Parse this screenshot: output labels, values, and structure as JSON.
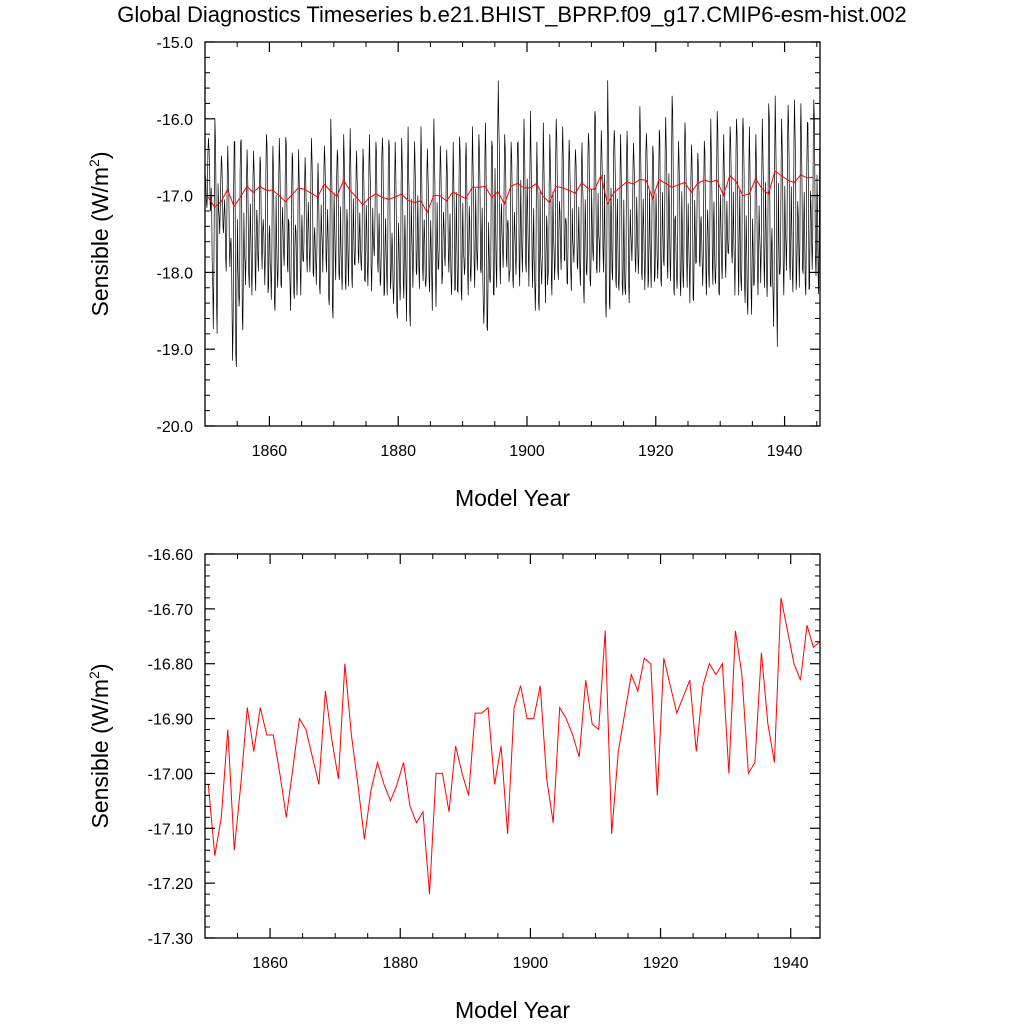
{
  "title": "Global Diagnostics Timeseries b.e21.BHIST_BPRP.f09_g17.CMIP6-esm-hist.002",
  "colors": {
    "monthly": "#000000",
    "annual": "#ff0000",
    "axis": "#000000"
  },
  "chart_data": [
    {
      "type": "line",
      "xlabel": "Model Year",
      "ylabel": "Sensible (W/m²)",
      "ylabel_text": "Sensible (W/m",
      "ylabel_sup": "2",
      "ylabel_close": ")",
      "xlim": [
        1850,
        1945.5
      ],
      "ylim": [
        -20.0,
        -15.0
      ],
      "xticks": [
        1860,
        1880,
        1900,
        1920,
        1940
      ],
      "xtick_labels": [
        "1860",
        "1880",
        "1900",
        "1920",
        "1940"
      ],
      "yticks": [
        -20.0,
        -19.0,
        -18.0,
        -17.0,
        -16.0,
        -15.0
      ],
      "ytick_labels": [
        "-20.0",
        "-19.0",
        "-18.0",
        "-17.0",
        "-16.0",
        "-15.0"
      ],
      "series": [
        {
          "role": "monthly",
          "x_start": 1850.04,
          "x_step": 0.0833333,
          "monthly_max": [
            -16.25,
            -16.0,
            -16.45,
            -16.35,
            -16.05,
            -16.1,
            -16.4,
            -16.3,
            -16.45,
            -16.2,
            -16.35,
            -16.25,
            -16.2,
            -16.3,
            -16.4,
            -16.5,
            -16.25,
            -16.45,
            -16.35,
            -16.0,
            -16.3,
            -16.2,
            -16.1,
            -16.4,
            -16.3,
            -16.2,
            -16.3,
            -16.15,
            -16.2,
            -16.3,
            -16.25,
            -16.1,
            -16.2,
            -16.1,
            -16.3,
            -16.0,
            -16.35,
            -16.4,
            -16.3,
            -16.1,
            -16.2,
            -16.1,
            -16.2,
            -16.05,
            -16.25,
            -15.5,
            -16.2,
            -16.3,
            -16.15,
            -16.0,
            -15.9,
            -16.3,
            -16.05,
            -16.2,
            -16.0,
            -16.1,
            -16.2,
            -16.25,
            -16.3,
            -16.1,
            -15.7,
            -16.15,
            -15.5,
            -16.0,
            -16.2,
            -16.1,
            -16.3,
            -15.8,
            -16.05,
            -16.2,
            -16.0,
            -15.9,
            -15.7,
            -16.2,
            -16.0,
            -16.15,
            -16.3,
            -16.1,
            -16.0,
            -15.9,
            -16.2,
            -16.1,
            -16.0,
            -15.8,
            -16.1,
            -16.2,
            -16.0,
            -15.8,
            -15.7,
            -16.0,
            -15.8,
            -15.75,
            -15.8,
            -15.85,
            -15.75,
            -15.8
          ],
          "monthly_min": [
            -17.2,
            -18.8,
            -17.5,
            -18.0,
            -19.3,
            -18.8,
            -18.2,
            -18.3,
            -18.0,
            -18.3,
            -18.5,
            -18.2,
            -18.0,
            -18.5,
            -18.3,
            -18.0,
            -18.2,
            -18.3,
            -18.0,
            -18.6,
            -18.1,
            -18.3,
            -18.2,
            -18.0,
            -18.2,
            -18.3,
            -18.0,
            -18.4,
            -18.3,
            -18.6,
            -18.5,
            -18.7,
            -18.2,
            -18.3,
            -18.4,
            -18.5,
            -18.2,
            -18.0,
            -18.3,
            -18.4,
            -18.3,
            -18.2,
            -18.1,
            -18.95,
            -18.3,
            -18.2,
            -18.0,
            -18.3,
            -18.2,
            -18.0,
            -18.2,
            -18.5,
            -18.4,
            -18.3,
            -18.2,
            -18.0,
            -18.3,
            -18.1,
            -18.4,
            -18.3,
            -18.2,
            -18.0,
            -18.75,
            -18.2,
            -18.3,
            -18.4,
            -18.0,
            -18.2,
            -18.3,
            -18.2,
            -18.3,
            -18.1,
            -18.3,
            -18.5,
            -18.2,
            -18.4,
            -18.0,
            -18.3,
            -18.2,
            -18.3,
            -18.2,
            -18.0,
            -18.3,
            -18.4,
            -18.55,
            -18.3,
            -18.2,
            -18.4,
            -18.97,
            -18.3,
            -18.1,
            -18.3,
            -18.2,
            -18.3,
            -18.1,
            -18.3
          ]
        },
        {
          "role": "annual",
          "x": [
            1850.5,
            1851.5,
            1852.5,
            1853.5,
            1854.5,
            1855.5,
            1856.5,
            1857.5,
            1858.5,
            1859.5,
            1860.5,
            1861.5,
            1862.5,
            1863.5,
            1864.5,
            1865.5,
            1866.5,
            1867.5,
            1868.5,
            1869.5,
            1870.5,
            1871.5,
            1872.5,
            1873.5,
            1874.5,
            1875.5,
            1876.5,
            1877.5,
            1878.5,
            1879.5,
            1880.5,
            1881.5,
            1882.5,
            1883.5,
            1884.5,
            1885.5,
            1886.5,
            1887.5,
            1888.5,
            1889.5,
            1890.5,
            1891.5,
            1892.5,
            1893.5,
            1894.5,
            1895.5,
            1896.5,
            1897.5,
            1898.5,
            1899.5,
            1900.5,
            1901.5,
            1902.5,
            1903.5,
            1904.5,
            1905.5,
            1906.5,
            1907.5,
            1908.5,
            1909.5,
            1910.5,
            1911.5,
            1912.5,
            1913.5,
            1914.5,
            1915.5,
            1916.5,
            1917.5,
            1918.5,
            1919.5,
            1920.5,
            1921.5,
            1922.5,
            1923.5,
            1924.5,
            1925.5,
            1926.5,
            1927.5,
            1928.5,
            1929.5,
            1930.5,
            1931.5,
            1932.5,
            1933.5,
            1934.5,
            1935.5,
            1936.5,
            1937.5,
            1938.5,
            1939.5,
            1940.5,
            1941.5,
            1942.5,
            1943.5,
            1944.5
          ],
          "values": [
            -17.02,
            -17.15,
            -17.08,
            -16.92,
            -17.14,
            -17.02,
            -16.88,
            -16.96,
            -16.88,
            -16.93,
            -16.93,
            -17.0,
            -17.08,
            -16.99,
            -16.9,
            -16.92,
            -16.97,
            -17.02,
            -16.85,
            -16.94,
            -17.01,
            -16.8,
            -16.93,
            -17.02,
            -17.12,
            -17.03,
            -16.98,
            -17.02,
            -17.05,
            -17.02,
            -16.98,
            -17.06,
            -17.09,
            -17.07,
            -17.22,
            -17.0,
            -17.0,
            -17.07,
            -16.95,
            -17.0,
            -17.04,
            -16.89,
            -16.89,
            -16.88,
            -17.02,
            -16.95,
            -17.11,
            -16.88,
            -16.84,
            -16.9,
            -16.9,
            -16.84,
            -17.01,
            -17.09,
            -16.88,
            -16.9,
            -16.93,
            -16.97,
            -16.83,
            -16.91,
            -16.92,
            -16.74,
            -17.11,
            -16.96,
            -16.89,
            -16.82,
            -16.85,
            -16.79,
            -16.8,
            -17.04,
            -16.79,
            -16.84,
            -16.89,
            -16.86,
            -16.83,
            -16.96,
            -16.84,
            -16.8,
            -16.82,
            -16.8,
            -17.0,
            -16.74,
            -16.82,
            -17.0,
            -16.98,
            -16.78,
            -16.91,
            -16.98,
            -16.68,
            -16.74,
            -16.8,
            -16.83,
            -16.73,
            -16.77,
            -16.76
          ]
        }
      ]
    },
    {
      "type": "line",
      "xlabel": "Model Year",
      "ylabel": "Sensible (W/m²)",
      "ylabel_text": "Sensible (W/m",
      "ylabel_sup": "2",
      "ylabel_close": ")",
      "xlim": [
        1850,
        1944.5
      ],
      "ylim": [
        -17.3,
        -16.6
      ],
      "xticks": [
        1860,
        1880,
        1900,
        1920,
        1940
      ],
      "xtick_labels": [
        "1860",
        "1880",
        "1900",
        "1920",
        "1940"
      ],
      "yticks": [
        -17.3,
        -17.2,
        -17.1,
        -17.0,
        -16.9,
        -16.8,
        -16.7,
        -16.6
      ],
      "ytick_labels": [
        "-17.30",
        "-17.20",
        "-17.10",
        "-17.00",
        "-16.90",
        "-16.80",
        "-16.70",
        "-16.60"
      ],
      "series": [
        {
          "role": "annual",
          "same_as_panel_1_annual": true
        }
      ]
    }
  ]
}
